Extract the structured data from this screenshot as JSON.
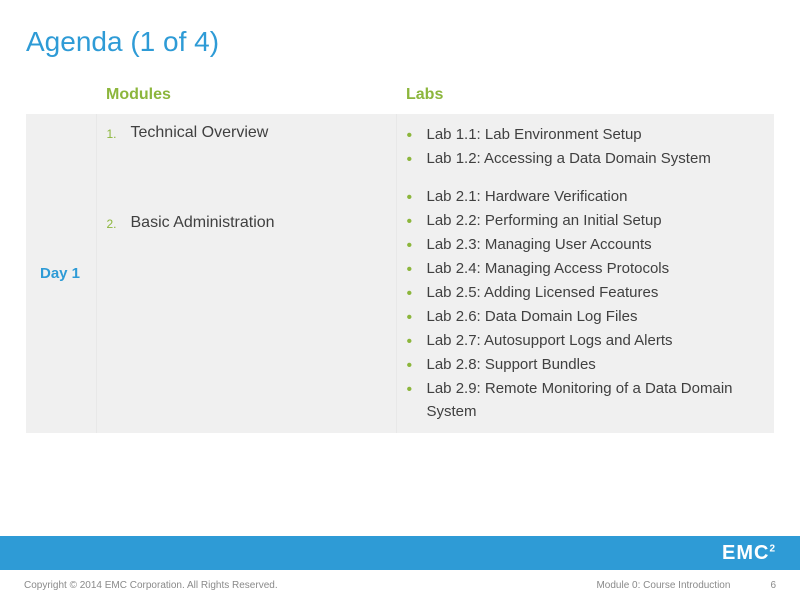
{
  "title": "Agenda (1 of 4)",
  "headers": {
    "day": "",
    "modules": "Modules",
    "labs": "Labs"
  },
  "day_label": "Day 1",
  "modules": [
    {
      "num": "1.",
      "text": "Technical Overview"
    },
    {
      "num": "2.",
      "text": "Basic Administration"
    }
  ],
  "labs_group1": [
    "Lab 1.1: Lab Environment Setup",
    "Lab 1.2: Accessing a Data Domain System"
  ],
  "labs_group2": [
    "Lab 2.1: Hardware Verification",
    "Lab 2.2: Performing an Initial Setup",
    "Lab 2.3: Managing User Accounts",
    "Lab 2.4: Managing Access Protocols",
    "Lab 2.5: Adding Licensed Features",
    "Lab 2.6: Data Domain Log Files",
    "Lab 2.7: Autosupport Logs and Alerts",
    "Lab 2.8: Support Bundles",
    "Lab 2.9: Remote Monitoring of a Data Domain System"
  ],
  "logo": {
    "main": "EMC",
    "sup": "2"
  },
  "footer": {
    "copyright": "Copyright © 2014 EMC Corporation. All Rights Reserved.",
    "module": "Module 0: Course Introduction",
    "page": "6"
  },
  "colors": {
    "title": "#2e9bd6",
    "accent_green": "#8cb63c",
    "row_bg": "#f0f0f0",
    "body_text": "#404040",
    "footer_bar": "#2e9bd6",
    "footer_text": "#8a8a8a"
  }
}
